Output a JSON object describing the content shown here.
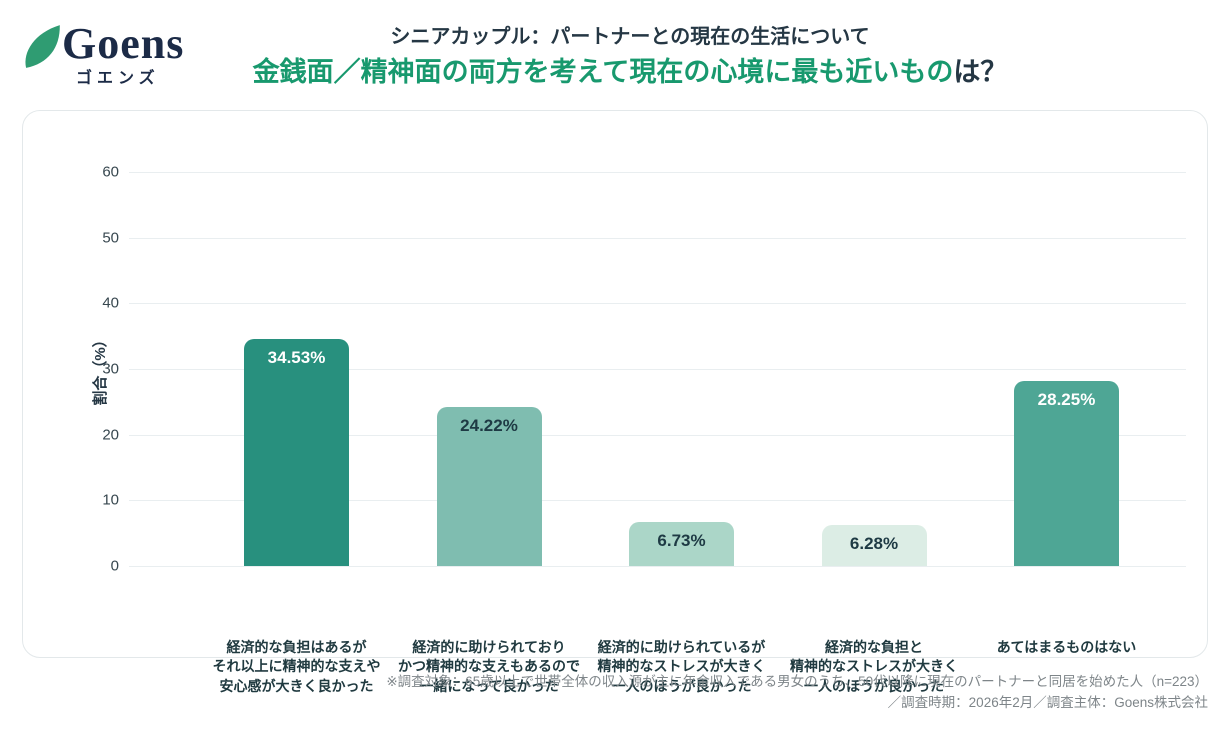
{
  "logo": {
    "name": "Goens",
    "kana": "ゴエンズ",
    "leaf_color": "#2f9c72",
    "text_color": "#1c2b47"
  },
  "header": {
    "title": "シニアカップル：パートナーとの現在の生活について",
    "subtitle_highlight": "金銭面／精神面の両方を考えて現在の心境に最も近いもの",
    "subtitle_suffix": "は？",
    "highlight_color": "#18996e"
  },
  "chart_data": {
    "type": "bar",
    "title": "金銭面／精神面の両方を考えて現在の心境に最も近いものは？",
    "xlabel": "",
    "ylabel": "割合（%）",
    "ylim": [
      0,
      60
    ],
    "yticks": [
      0,
      10,
      20,
      30,
      40,
      50,
      60
    ],
    "grid": true,
    "legend_position": "none",
    "categories": [
      [
        "経済的な負担はあるが",
        "それ以上に精神的な支えや",
        "安心感が大きく良かった"
      ],
      [
        "経済的に助けられており",
        "かつ精神的な支えもあるので",
        "一緒になって良かった"
      ],
      [
        "経済的に助けられているが",
        "精神的なストレスが大きく",
        "一人のほうが良かった"
      ],
      [
        "経済的な負担と",
        "精神的なストレスが大きく",
        "一人のほうが良かった"
      ],
      [
        "あてはまるものはない"
      ]
    ],
    "values": [
      34.53,
      24.22,
      6.73,
      6.28,
      28.25
    ],
    "value_labels": [
      "34.53%",
      "24.22%",
      "6.73%",
      "6.28%",
      "28.25%"
    ],
    "bar_colors": [
      "#28907e",
      "#7fbdb0",
      "#abd6c8",
      "#dcede5",
      "#4ea695"
    ],
    "value_label_colors": [
      "#ffffff",
      "#1e3a44",
      "#1e3a44",
      "#1e3a44",
      "#ffffff"
    ]
  },
  "footer": {
    "line1": "※調査対象：65歳以上で世帯全体の収入源が主に年金収入である男女のうち、50代以降に現在のパートナーと同居を始めた人（n=223）",
    "line2": "／調査時期：2026年2月／調査主体：Goens株式会社"
  }
}
